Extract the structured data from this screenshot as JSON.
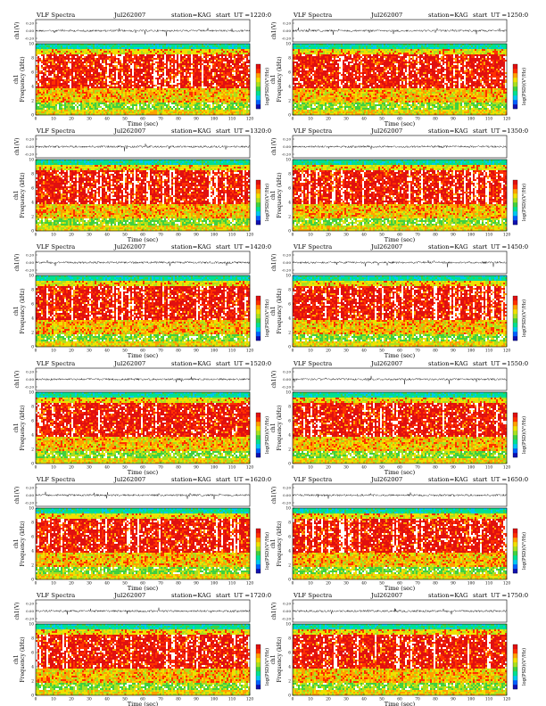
{
  "chart_data": [
    {
      "type": "heatmap",
      "label": "VLF Spectra",
      "date": "Jul262007",
      "station": "station=KAG",
      "start_label": "start",
      "ut": "UT =1220:0"
    },
    {
      "type": "heatmap",
      "label": "VLF Spectra",
      "date": "Jul262007",
      "station": "station=KAG",
      "start_label": "start",
      "ut": "UT =1250:0"
    },
    {
      "type": "heatmap",
      "label": "VLF Spectra",
      "date": "Jul262007",
      "station": "station=KAG",
      "start_label": "start",
      "ut": "UT =1320:0"
    },
    {
      "type": "heatmap",
      "label": "VLF Spectra",
      "date": "Jul262007",
      "station": "station=KAG",
      "start_label": "start",
      "ut": "UT =1350:0"
    },
    {
      "type": "heatmap",
      "label": "VLF Spectra",
      "date": "Jul262007",
      "station": "station=KAG",
      "start_label": "start",
      "ut": "UT =1420:0"
    },
    {
      "type": "heatmap",
      "label": "VLF Spectra",
      "date": "Jul262007",
      "station": "station=KAG",
      "start_label": "start",
      "ut": "UT =1450:0"
    },
    {
      "type": "heatmap",
      "label": "VLF Spectra",
      "date": "Jul262007",
      "station": "station=KAG",
      "start_label": "start",
      "ut": "UT =1520:0"
    },
    {
      "type": "heatmap",
      "label": "VLF Spectra",
      "date": "Jul262007",
      "station": "station=KAG",
      "start_label": "start",
      "ut": "UT =1550:0"
    },
    {
      "type": "heatmap",
      "label": "VLF Spectra",
      "date": "Jul262007",
      "station": "station=KAG",
      "start_label": "start",
      "ut": "UT =1620:0"
    },
    {
      "type": "heatmap",
      "label": "VLF Spectra",
      "date": "Jul262007",
      "station": "station=KAG",
      "start_label": "start",
      "ut": "UT =1650:0"
    },
    {
      "type": "heatmap",
      "label": "VLF Spectra",
      "date": "Jul262007",
      "station": "station=KAG",
      "start_label": "start",
      "ut": "UT =1720:0"
    },
    {
      "type": "heatmap",
      "label": "VLF Spectra",
      "date": "Jul262007",
      "station": "station=KAG",
      "start_label": "start",
      "ut": "UT =1750:0"
    }
  ],
  "axes": {
    "xlabel": "Time (sec)",
    "ylabel": "Frequency (kHz)",
    "ylabel_prefix": "ch1",
    "wave_ylabel": "ch1(V)",
    "colorbar_label": "log(PSD)(V²/Hz)",
    "xticks": [
      0,
      10,
      20,
      30,
      40,
      50,
      60,
      70,
      80,
      90,
      100,
      110,
      120
    ],
    "yticks": [
      0,
      2,
      4,
      6,
      8,
      10
    ],
    "wave_ticks": [
      "0.20",
      "0.00",
      "-0.20"
    ],
    "xlim": [
      0,
      120
    ],
    "ylim": [
      0,
      10
    ]
  },
  "colors": {
    "palette": [
      "#1010b0",
      "#0060ff",
      "#00c8f0",
      "#00e090",
      "#40d040",
      "#a8e020",
      "#f0e000",
      "#ffa000",
      "#ff3000",
      "#e01010",
      "#ffffff"
    ]
  }
}
